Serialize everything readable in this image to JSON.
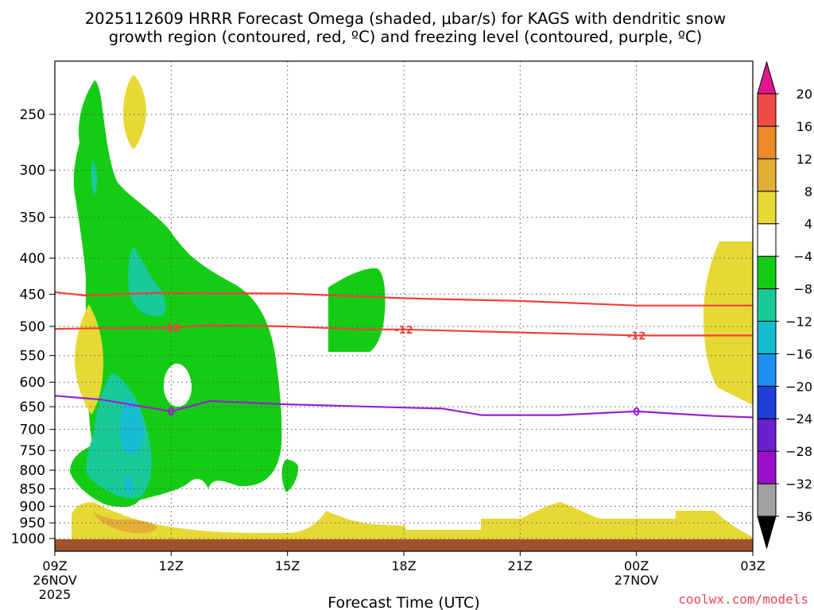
{
  "chart_data": {
    "type": "time-height contour",
    "title_line1": "2025112609 HRRR Forecast Omega (shaded, μbar/s) for KAGS with dendritic snow",
    "title_line2": "growth region (contoured, red, ºC) and freezing level (contoured, purple, ºC)",
    "xlabel": "Forecast Time (UTC)",
    "ylabel": "",
    "credit": "coolwx.com/models",
    "x_ticks": [
      {
        "hour": 0,
        "label": "09Z",
        "sub1": "26NOV",
        "sub2": "2025"
      },
      {
        "hour": 3,
        "label": "12Z",
        "sub1": "",
        "sub2": ""
      },
      {
        "hour": 6,
        "label": "15Z",
        "sub1": "",
        "sub2": ""
      },
      {
        "hour": 9,
        "label": "18Z",
        "sub1": "",
        "sub2": ""
      },
      {
        "hour": 12,
        "label": "21Z",
        "sub1": "",
        "sub2": ""
      },
      {
        "hour": 15,
        "label": "00Z",
        "sub1": "27NOV",
        "sub2": ""
      },
      {
        "hour": 18,
        "label": "03Z",
        "sub1": "",
        "sub2": ""
      }
    ],
    "xlim": [
      0,
      18
    ],
    "y_ticks": [
      250,
      300,
      350,
      400,
      450,
      500,
      550,
      600,
      650,
      700,
      750,
      800,
      850,
      900,
      950,
      1000
    ],
    "ylim_hPa": [
      200,
      1010
    ],
    "grid": true,
    "colorbar": {
      "levels": [
        -36,
        -32,
        -28,
        -24,
        -20,
        -16,
        -12,
        -8,
        -4,
        4,
        8,
        12,
        16,
        20
      ],
      "colors": [
        "#000000",
        "#a0a0a0",
        "#9b0fc8",
        "#6a1fd0",
        "#1e3fd8",
        "#1e8ef0",
        "#16bcd0",
        "#19c99a",
        "#14cc14",
        "#ffffff",
        "#e6d935",
        "#e3ae36",
        "#ec8a28",
        "#ee4a48",
        "#e01690"
      ]
    },
    "contours": [
      {
        "label": "-12",
        "color": "#f2403a",
        "points": [
          [
            0,
            447
          ],
          [
            0.8,
            452
          ],
          [
            2.5,
            448
          ],
          [
            6,
            449
          ],
          [
            9,
            456
          ],
          [
            12,
            460
          ],
          [
            15,
            467
          ],
          [
            18,
            467
          ]
        ]
      },
      {
        "label": "-12",
        "color": "#f2403a",
        "points": [
          [
            0,
            504
          ],
          [
            1,
            503
          ],
          [
            2,
            503
          ],
          [
            3,
            502
          ],
          [
            4,
            498
          ],
          [
            6,
            500
          ],
          [
            8,
            505
          ],
          [
            9,
            505
          ],
          [
            12,
            510
          ],
          [
            15,
            515
          ],
          [
            18,
            515
          ]
        ],
        "label_at": [
          3,
          9,
          15
        ]
      },
      {
        "label": "0",
        "color": "#9c1fd0",
        "points": [
          [
            0,
            627
          ],
          [
            1.2,
            635
          ],
          [
            3,
            660
          ],
          [
            4,
            638
          ],
          [
            6,
            645
          ],
          [
            9,
            652
          ],
          [
            10,
            654
          ],
          [
            11,
            668
          ],
          [
            13,
            668
          ],
          [
            15,
            660
          ],
          [
            17,
            670
          ],
          [
            18,
            673
          ]
        ],
        "label_at": [
          3,
          15
        ]
      }
    ],
    "regions": [
      {
        "level": "-4 to -8 (green)",
        "color": "#14cc14"
      },
      {
        "level": "-8 to -12",
        "color": "#19c99a"
      },
      {
        "level": "-12 to -16",
        "color": "#16bcd0"
      },
      {
        "level": "4 to 8 (yellow)",
        "color": "#e6d935"
      },
      {
        "level": "8 to 12",
        "color": "#e3ae36"
      }
    ]
  }
}
